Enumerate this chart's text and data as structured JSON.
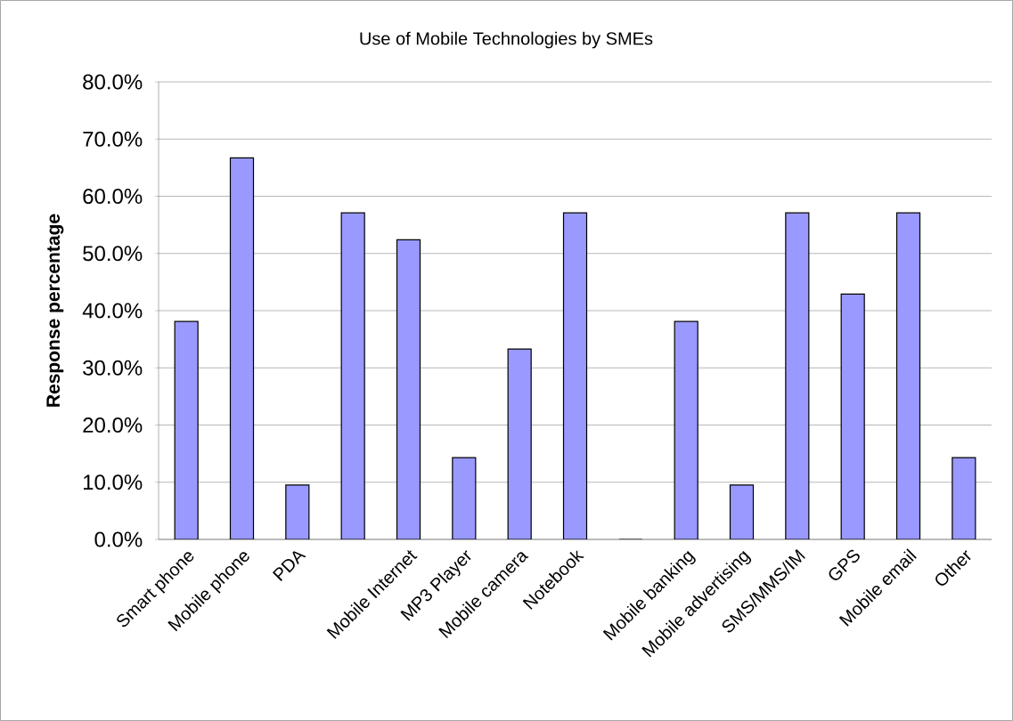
{
  "chart_data": {
    "type": "bar",
    "title": "Use of  Mobile Technologies by SMEs",
    "ylabel": "Response percentage",
    "categories": [
      "Smart phone",
      "Mobile phone",
      "PDA",
      null,
      "Mobile Internet",
      "MP3 Player",
      "Mobile camera",
      "Notebook",
      null,
      "Mobile banking",
      "Mobile advertising",
      "SMS/MMS/IM",
      "GPS",
      "Mobile email",
      "Other"
    ],
    "values": [
      38.1,
      66.7,
      9.5,
      57.1,
      52.4,
      14.3,
      33.3,
      57.1,
      0,
      38.1,
      9.5,
      57.1,
      42.9,
      57.1,
      14.3
    ],
    "color": "#9999ff",
    "ylim": [
      0,
      80
    ],
    "yticks": [
      {
        "value": 0,
        "label": "0.0%"
      },
      {
        "value": 10,
        "label": "10.0%"
      },
      {
        "value": 20,
        "label": "20.0%"
      },
      {
        "value": 30,
        "label": "30.0%"
      },
      {
        "value": 40,
        "label": "40.0%"
      },
      {
        "value": 50,
        "label": "50.0%"
      },
      {
        "value": 60,
        "label": "60.0%"
      },
      {
        "value": 70,
        "label": "70.0%"
      },
      {
        "value": 80,
        "label": "80.0%"
      }
    ],
    "grid": "y"
  }
}
